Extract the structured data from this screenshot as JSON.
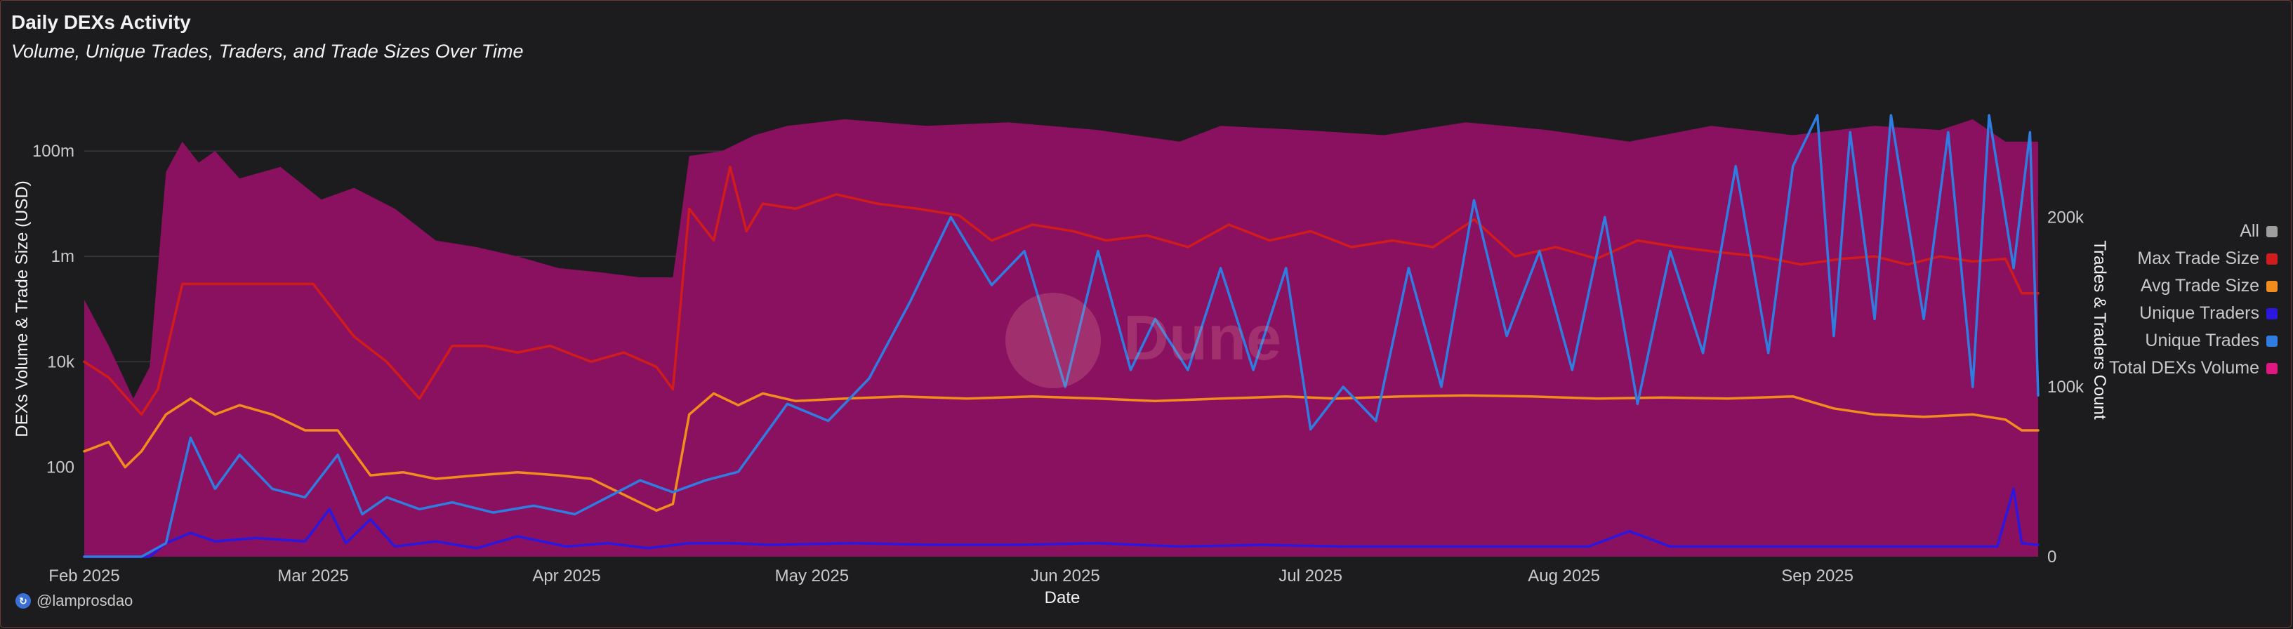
{
  "header": {
    "title": "Daily DEXs Activity",
    "subtitle": "Volume, Unique Trades, Traders, and Trade Sizes Over Time"
  },
  "attribution": "@lamprosdao",
  "watermark": "Dune",
  "legend": [
    {
      "label": "All",
      "color": "#9e9e9e"
    },
    {
      "label": "Max Trade Size",
      "color": "#d01c1c"
    },
    {
      "label": "Avg Trade Size",
      "color": "#f28c1c"
    },
    {
      "label": "Unique Traders",
      "color": "#2a18e0"
    },
    {
      "label": "Unique Trades",
      "color": "#2f7de1"
    },
    {
      "label": "Total DEXs Volume",
      "color": "#e0187f"
    }
  ],
  "chart_data": {
    "type": "line",
    "title": "Daily DEXs Activity",
    "subtitle": "Volume, Unique Trades, Traders, and Trade Sizes Over Time",
    "xlabel": "Date",
    "ylabel_left": "DEXs Volume & Trade Size (USD)",
    "ylabel_right": "Trades & Traders Count",
    "y_left_scale": "log",
    "y_left_range": [
      2,
      1000000000
    ],
    "y_left_ticks": [
      "100",
      "10k",
      "1m",
      "100m"
    ],
    "y_right_range": [
      0,
      270000
    ],
    "y_right_ticks": [
      "0",
      "100k",
      "200k"
    ],
    "x_range": [
      "2025-02-01",
      "2025-09-28"
    ],
    "x_ticks": [
      "Feb 2025",
      "Mar 2025",
      "Apr 2025",
      "May 2025",
      "Jun 2025",
      "Jul 2025",
      "Aug 2025",
      "Sep 2025"
    ],
    "series": [
      {
        "name": "Total DEXs Volume",
        "axis": "left",
        "render": "area",
        "color": "#e0187f",
        "points": [
          [
            "2025-02-01",
            150000
          ],
          [
            "2025-02-04",
            20000
          ],
          [
            "2025-02-07",
            2000
          ],
          [
            "2025-02-09",
            8000
          ],
          [
            "2025-02-11",
            40000000
          ],
          [
            "2025-02-13",
            150000000
          ],
          [
            "2025-02-15",
            60000000
          ],
          [
            "2025-02-17",
            100000000
          ],
          [
            "2025-02-20",
            30000000
          ],
          [
            "2025-02-25",
            50000000
          ],
          [
            "2025-03-02",
            12000000
          ],
          [
            "2025-03-06",
            20000000
          ],
          [
            "2025-03-11",
            8000000
          ],
          [
            "2025-03-16",
            2000000
          ],
          [
            "2025-03-21",
            1500000
          ],
          [
            "2025-03-26",
            1000000
          ],
          [
            "2025-03-31",
            600000
          ],
          [
            "2025-04-05",
            500000
          ],
          [
            "2025-04-10",
            400000
          ],
          [
            "2025-04-14",
            400000
          ],
          [
            "2025-04-16",
            80000000
          ],
          [
            "2025-04-20",
            100000000
          ],
          [
            "2025-04-24",
            200000000
          ],
          [
            "2025-04-28",
            300000000
          ],
          [
            "2025-05-05",
            400000000
          ],
          [
            "2025-05-15",
            300000000
          ],
          [
            "2025-05-25",
            350000000
          ],
          [
            "2025-06-05",
            250000000
          ],
          [
            "2025-06-15",
            150000000
          ],
          [
            "2025-06-20",
            300000000
          ],
          [
            "2025-06-30",
            250000000
          ],
          [
            "2025-07-10",
            200000000
          ],
          [
            "2025-07-20",
            350000000
          ],
          [
            "2025-07-30",
            250000000
          ],
          [
            "2025-08-09",
            150000000
          ],
          [
            "2025-08-19",
            300000000
          ],
          [
            "2025-08-29",
            200000000
          ],
          [
            "2025-09-08",
            300000000
          ],
          [
            "2025-09-16",
            250000000
          ],
          [
            "2025-09-20",
            400000000
          ],
          [
            "2025-09-24",
            150000000
          ],
          [
            "2025-09-28",
            150000000
          ]
        ]
      },
      {
        "name": "Max Trade Size",
        "axis": "left",
        "render": "line",
        "color": "#d01c1c",
        "points": [
          [
            "2025-02-01",
            10000
          ],
          [
            "2025-02-04",
            5000
          ],
          [
            "2025-02-08",
            1000
          ],
          [
            "2025-02-10",
            3000
          ],
          [
            "2025-02-13",
            300000
          ],
          [
            "2025-02-16",
            300000
          ],
          [
            "2025-02-20",
            300000
          ],
          [
            "2025-02-25",
            300000
          ],
          [
            "2025-03-01",
            300000
          ],
          [
            "2025-03-06",
            30000
          ],
          [
            "2025-03-10",
            10000
          ],
          [
            "2025-03-14",
            2000
          ],
          [
            "2025-03-18",
            20000
          ],
          [
            "2025-03-22",
            20000
          ],
          [
            "2025-03-26",
            15000
          ],
          [
            "2025-03-30",
            20000
          ],
          [
            "2025-04-04",
            10000
          ],
          [
            "2025-04-08",
            15000
          ],
          [
            "2025-04-12",
            8000
          ],
          [
            "2025-04-14",
            3000
          ],
          [
            "2025-04-16",
            8000000
          ],
          [
            "2025-04-19",
            2000000
          ],
          [
            "2025-04-21",
            50000000
          ],
          [
            "2025-04-23",
            3000000
          ],
          [
            "2025-04-25",
            10000000
          ],
          [
            "2025-04-29",
            8000000
          ],
          [
            "2025-05-04",
            15000000
          ],
          [
            "2025-05-09",
            10000000
          ],
          [
            "2025-05-14",
            8000000
          ],
          [
            "2025-05-19",
            6000000
          ],
          [
            "2025-05-23",
            2000000
          ],
          [
            "2025-05-28",
            4000000
          ],
          [
            "2025-06-02",
            3000000
          ],
          [
            "2025-06-06",
            2000000
          ],
          [
            "2025-06-11",
            2500000
          ],
          [
            "2025-06-16",
            1500000
          ],
          [
            "2025-06-21",
            4000000
          ],
          [
            "2025-06-26",
            2000000
          ],
          [
            "2025-07-01",
            3000000
          ],
          [
            "2025-07-06",
            1500000
          ],
          [
            "2025-07-11",
            2000000
          ],
          [
            "2025-07-16",
            1500000
          ],
          [
            "2025-07-21",
            5000000
          ],
          [
            "2025-07-26",
            1000000
          ],
          [
            "2025-07-31",
            1500000
          ],
          [
            "2025-08-05",
            900000
          ],
          [
            "2025-08-10",
            2000000
          ],
          [
            "2025-08-15",
            1500000
          ],
          [
            "2025-08-20",
            1200000
          ],
          [
            "2025-08-25",
            1000000
          ],
          [
            "2025-08-30",
            700000
          ],
          [
            "2025-09-04",
            900000
          ],
          [
            "2025-09-08",
            1000000
          ],
          [
            "2025-09-12",
            700000
          ],
          [
            "2025-09-16",
            1000000
          ],
          [
            "2025-09-20",
            800000
          ],
          [
            "2025-09-24",
            900000
          ],
          [
            "2025-09-26",
            200000
          ],
          [
            "2025-09-28",
            200000
          ]
        ]
      },
      {
        "name": "Avg Trade Size",
        "axis": "left",
        "render": "line",
        "color": "#f28c1c",
        "points": [
          [
            "2025-02-01",
            200
          ],
          [
            "2025-02-04",
            300
          ],
          [
            "2025-02-06",
            100
          ],
          [
            "2025-02-08",
            200
          ],
          [
            "2025-02-11",
            1000
          ],
          [
            "2025-02-14",
            2000
          ],
          [
            "2025-02-17",
            1000
          ],
          [
            "2025-02-20",
            1500
          ],
          [
            "2025-02-24",
            1000
          ],
          [
            "2025-02-28",
            500
          ],
          [
            "2025-03-04",
            500
          ],
          [
            "2025-03-08",
            70
          ],
          [
            "2025-03-12",
            80
          ],
          [
            "2025-03-16",
            60
          ],
          [
            "2025-03-21",
            70
          ],
          [
            "2025-03-26",
            80
          ],
          [
            "2025-03-31",
            70
          ],
          [
            "2025-04-04",
            60
          ],
          [
            "2025-04-08",
            30
          ],
          [
            "2025-04-12",
            15
          ],
          [
            "2025-04-14",
            20
          ],
          [
            "2025-04-16",
            1000
          ],
          [
            "2025-04-19",
            2500
          ],
          [
            "2025-04-22",
            1500
          ],
          [
            "2025-04-25",
            2500
          ],
          [
            "2025-04-29",
            1800
          ],
          [
            "2025-05-05",
            2000
          ],
          [
            "2025-05-12",
            2200
          ],
          [
            "2025-05-20",
            2000
          ],
          [
            "2025-05-28",
            2200
          ],
          [
            "2025-06-05",
            2000
          ],
          [
            "2025-06-12",
            1800
          ],
          [
            "2025-06-20",
            2000
          ],
          [
            "2025-06-28",
            2200
          ],
          [
            "2025-07-04",
            2000
          ],
          [
            "2025-07-12",
            2200
          ],
          [
            "2025-07-20",
            2300
          ],
          [
            "2025-07-28",
            2200
          ],
          [
            "2025-08-05",
            2000
          ],
          [
            "2025-08-13",
            2100
          ],
          [
            "2025-08-21",
            2000
          ],
          [
            "2025-08-29",
            2200
          ],
          [
            "2025-09-03",
            1300
          ],
          [
            "2025-09-08",
            1000
          ],
          [
            "2025-09-14",
            900
          ],
          [
            "2025-09-20",
            1000
          ],
          [
            "2025-09-24",
            800
          ],
          [
            "2025-09-26",
            500
          ],
          [
            "2025-09-28",
            500
          ]
        ]
      },
      {
        "name": "Unique Traders",
        "axis": "right",
        "render": "line",
        "color": "#2a18e0",
        "points": [
          [
            "2025-02-01",
            0
          ],
          [
            "2025-02-09",
            0
          ],
          [
            "2025-02-11",
            8000
          ],
          [
            "2025-02-14",
            14000
          ],
          [
            "2025-02-17",
            9000
          ],
          [
            "2025-02-22",
            11000
          ],
          [
            "2025-02-28",
            9000
          ],
          [
            "2025-03-03",
            28000
          ],
          [
            "2025-03-05",
            8000
          ],
          [
            "2025-03-08",
            22000
          ],
          [
            "2025-03-11",
            6000
          ],
          [
            "2025-03-16",
            9000
          ],
          [
            "2025-03-21",
            5000
          ],
          [
            "2025-03-26",
            12000
          ],
          [
            "2025-04-01",
            6000
          ],
          [
            "2025-04-06",
            8000
          ],
          [
            "2025-04-11",
            5000
          ],
          [
            "2025-04-16",
            8000
          ],
          [
            "2025-04-21",
            8000
          ],
          [
            "2025-04-26",
            7000
          ],
          [
            "2025-05-06",
            8000
          ],
          [
            "2025-05-16",
            7000
          ],
          [
            "2025-05-26",
            7000
          ],
          [
            "2025-06-05",
            8000
          ],
          [
            "2025-06-15",
            6000
          ],
          [
            "2025-06-25",
            7000
          ],
          [
            "2025-07-05",
            6000
          ],
          [
            "2025-07-15",
            6000
          ],
          [
            "2025-07-25",
            6000
          ],
          [
            "2025-08-04",
            6000
          ],
          [
            "2025-08-09",
            15000
          ],
          [
            "2025-08-14",
            6000
          ],
          [
            "2025-08-24",
            6000
          ],
          [
            "2025-09-03",
            6000
          ],
          [
            "2025-09-13",
            6000
          ],
          [
            "2025-09-23",
            6000
          ],
          [
            "2025-09-25",
            40000
          ],
          [
            "2025-09-26",
            8000
          ],
          [
            "2025-09-28",
            7000
          ]
        ]
      },
      {
        "name": "Unique Trades",
        "axis": "right",
        "render": "line",
        "color": "#2f7de1",
        "points": [
          [
            "2025-02-01",
            0
          ],
          [
            "2025-02-08",
            0
          ],
          [
            "2025-02-11",
            8000
          ],
          [
            "2025-02-14",
            70000
          ],
          [
            "2025-02-17",
            40000
          ],
          [
            "2025-02-20",
            60000
          ],
          [
            "2025-02-24",
            40000
          ],
          [
            "2025-02-28",
            35000
          ],
          [
            "2025-03-04",
            60000
          ],
          [
            "2025-03-07",
            25000
          ],
          [
            "2025-03-10",
            35000
          ],
          [
            "2025-03-14",
            28000
          ],
          [
            "2025-03-18",
            32000
          ],
          [
            "2025-03-23",
            26000
          ],
          [
            "2025-03-28",
            30000
          ],
          [
            "2025-04-02",
            25000
          ],
          [
            "2025-04-06",
            35000
          ],
          [
            "2025-04-10",
            45000
          ],
          [
            "2025-04-14",
            38000
          ],
          [
            "2025-04-18",
            45000
          ],
          [
            "2025-04-22",
            50000
          ],
          [
            "2025-04-28",
            90000
          ],
          [
            "2025-05-03",
            80000
          ],
          [
            "2025-05-08",
            105000
          ],
          [
            "2025-05-13",
            150000
          ],
          [
            "2025-05-18",
            200000
          ],
          [
            "2025-05-23",
            160000
          ],
          [
            "2025-05-27",
            180000
          ],
          [
            "2025-06-01",
            100000
          ],
          [
            "2025-06-05",
            180000
          ],
          [
            "2025-06-09",
            110000
          ],
          [
            "2025-06-12",
            140000
          ],
          [
            "2025-06-16",
            110000
          ],
          [
            "2025-06-20",
            170000
          ],
          [
            "2025-06-24",
            110000
          ],
          [
            "2025-06-28",
            170000
          ],
          [
            "2025-07-01",
            75000
          ],
          [
            "2025-07-05",
            100000
          ],
          [
            "2025-07-09",
            80000
          ],
          [
            "2025-07-13",
            170000
          ],
          [
            "2025-07-17",
            100000
          ],
          [
            "2025-07-21",
            210000
          ],
          [
            "2025-07-25",
            130000
          ],
          [
            "2025-07-29",
            180000
          ],
          [
            "2025-08-02",
            110000
          ],
          [
            "2025-08-06",
            200000
          ],
          [
            "2025-08-10",
            90000
          ],
          [
            "2025-08-14",
            180000
          ],
          [
            "2025-08-18",
            120000
          ],
          [
            "2025-08-22",
            230000
          ],
          [
            "2025-08-26",
            120000
          ],
          [
            "2025-08-29",
            230000
          ],
          [
            "2025-09-01",
            260000
          ],
          [
            "2025-09-03",
            130000
          ],
          [
            "2025-09-05",
            250000
          ],
          [
            "2025-09-08",
            140000
          ],
          [
            "2025-09-10",
            260000
          ],
          [
            "2025-09-14",
            140000
          ],
          [
            "2025-09-17",
            250000
          ],
          [
            "2025-09-20",
            100000
          ],
          [
            "2025-09-22",
            260000
          ],
          [
            "2025-09-25",
            170000
          ],
          [
            "2025-09-27",
            250000
          ],
          [
            "2025-09-28",
            95000
          ]
        ]
      }
    ]
  }
}
